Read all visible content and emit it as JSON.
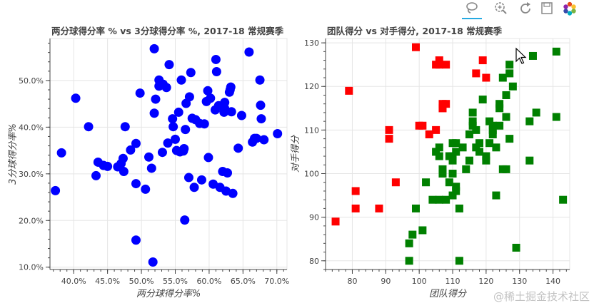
{
  "toolbar": {
    "tools": [
      {
        "name": "lasso-select-icon",
        "active": true
      },
      {
        "name": "zoom-in-icon",
        "active": false
      },
      {
        "name": "reset-icon",
        "active": false
      },
      {
        "name": "save-icon",
        "active": false
      },
      {
        "name": "bokeh-logo-icon",
        "active": false
      }
    ]
  },
  "watermark": "@稀土掘金技术社区",
  "colors": {
    "blue": "#0000ff",
    "red": "#ff0000",
    "green": "#008000",
    "grid": "#e5e5e5",
    "axis": "#444444"
  },
  "chart_data": [
    {
      "type": "scatter",
      "title": "两分球得分率 % vs 3分球得分率 %, 2017-18 常规赛季",
      "xlabel": "两分球得分率%",
      "ylabel": "3分球得分率%",
      "xlim": [
        0.365,
        0.715
      ],
      "ylim": [
        0.095,
        0.59
      ],
      "xticks": [
        0.4,
        0.45,
        0.5,
        0.55,
        0.6,
        0.65,
        0.7
      ],
      "yticks": [
        0.1,
        0.2,
        0.3,
        0.4,
        0.5
      ],
      "xtick_labels": [
        "40.0%",
        "45.0%",
        "50.0%",
        "55.0%",
        "60.0%",
        "65.0%",
        "70.0%"
      ],
      "ytick_labels": [
        "10.0%",
        "20.0%",
        "30.0%",
        "40.0%",
        "50.0%"
      ],
      "grid": true,
      "series": [
        {
          "marker": "circle",
          "color": "#0000ff",
          "x": [
            0.373,
            0.382,
            0.403,
            0.422,
            0.433,
            0.436,
            0.444,
            0.45,
            0.465,
            0.47,
            0.473,
            0.474,
            0.476,
            0.484,
            0.492,
            0.492,
            0.492,
            0.498,
            0.506,
            0.511,
            0.515,
            0.517,
            0.519,
            0.519,
            0.521,
            0.526,
            0.526,
            0.531,
            0.532,
            0.537,
            0.539,
            0.541,
            0.546,
            0.547,
            0.55,
            0.552,
            0.555,
            0.557,
            0.559,
            0.562,
            0.563,
            0.564,
            0.565,
            0.566,
            0.57,
            0.571,
            0.573,
            0.575,
            0.578,
            0.58,
            0.586,
            0.589,
            0.593,
            0.596,
            0.598,
            0.599,
            0.602,
            0.606,
            0.609,
            0.61,
            0.611,
            0.614,
            0.616,
            0.62,
            0.622,
            0.623,
            0.623,
            0.625,
            0.627,
            0.63,
            0.631,
            0.632,
            0.633,
            0.635,
            0.643,
            0.648,
            0.659,
            0.664,
            0.667,
            0.67,
            0.675,
            0.676,
            0.677,
            0.681,
            0.701
          ],
          "y": [
            0.264,
            0.345,
            0.462,
            0.401,
            0.296,
            0.325,
            0.318,
            0.316,
            0.315,
            0.322,
            0.333,
            0.305,
            0.401,
            0.351,
            0.158,
            0.279,
            0.365,
            0.473,
            0.267,
            0.336,
            0.312,
            0.111,
            0.43,
            0.568,
            0.46,
            0.488,
            0.501,
            0.346,
            0.492,
            0.485,
            0.366,
            0.534,
            0.418,
            0.401,
            0.374,
            0.35,
            0.432,
            0.347,
            0.501,
            0.349,
            0.354,
            0.201,
            0.395,
            0.451,
            0.292,
            0.465,
            0.517,
            0.419,
            0.271,
            0.416,
            0.408,
            0.287,
            0.407,
            0.455,
            0.478,
            0.335,
            0.462,
            0.278,
            0.437,
            0.545,
            0.519,
            0.446,
            0.271,
            0.305,
            0.432,
            0.44,
            0.453,
            0.263,
            0.302,
            0.475,
            0.48,
            0.486,
            0.433,
            0.258,
            0.355,
            0.425,
            0.561,
            0.368,
            0.376,
            0.376,
            0.501,
            0.447,
            0.418,
            0.373,
            0.386
          ]
        }
      ]
    },
    {
      "type": "scatter",
      "title": "团队得分 vs 对手得分, 2017-18 常规赛季",
      "xlabel": "团队得分",
      "ylabel": "对手得分",
      "xlim": [
        72,
        145
      ],
      "ylim": [
        78,
        131
      ],
      "xticks": [
        80,
        90,
        100,
        110,
        120,
        130,
        140
      ],
      "yticks": [
        80,
        90,
        100,
        110,
        120,
        130
      ],
      "xtick_labels": [
        "80",
        "90",
        "100",
        "110",
        "120",
        "130",
        "140"
      ],
      "ytick_labels": [
        "80",
        "90",
        "100",
        "110",
        "120",
        "130"
      ],
      "grid": true,
      "series": [
        {
          "marker": "square",
          "color": "#ff0000",
          "x": [
            75,
            79,
            81,
            81,
            88,
            91,
            91,
            93,
            99,
            100,
            101,
            103,
            105,
            105,
            106,
            106,
            107,
            107,
            107,
            108,
            108,
            117,
            119,
            120
          ],
          "y": [
            89,
            119,
            96,
            92,
            92,
            110,
            108,
            98,
            129,
            111,
            111,
            109,
            110,
            125,
            126,
            125,
            116,
            115,
            115,
            116,
            125,
            123,
            126,
            122
          ]
        },
        {
          "marker": "square",
          "color": "#008000",
          "x": [
            97,
            97,
            98,
            99,
            101,
            102,
            104,
            105,
            106,
            106,
            106,
            107,
            107,
            108,
            109,
            109,
            110,
            110,
            110,
            110,
            110,
            111,
            111,
            111,
            111,
            112,
            112,
            113,
            114,
            115,
            115,
            116,
            116,
            116,
            117,
            117,
            118,
            118,
            119,
            120,
            120,
            121,
            121,
            122,
            122,
            122,
            123,
            123,
            124,
            124,
            124,
            125,
            125,
            126,
            126,
            126,
            127,
            127,
            127,
            128,
            129,
            133,
            133,
            134,
            135,
            141,
            141,
            143
          ],
          "y": [
            80,
            84,
            86,
            92,
            87,
            98,
            94,
            105,
            106,
            104,
            94,
            100,
            101,
            94,
            104,
            98,
            95,
            104,
            107,
            100,
            103,
            97,
            107,
            105,
            96,
            80,
            92,
            106,
            101,
            109,
            103,
            114,
            112,
            111,
            110,
            106,
            105,
            107,
            117,
            104,
            103,
            107,
            112,
            109,
            110,
            111,
            95,
            106,
            115,
            111,
            116,
            122,
            101,
            118,
            101,
            113,
            108,
            125,
            123,
            120,
            83,
            112,
            103,
            127,
            114,
            113,
            128,
            94
          ]
        }
      ]
    }
  ]
}
